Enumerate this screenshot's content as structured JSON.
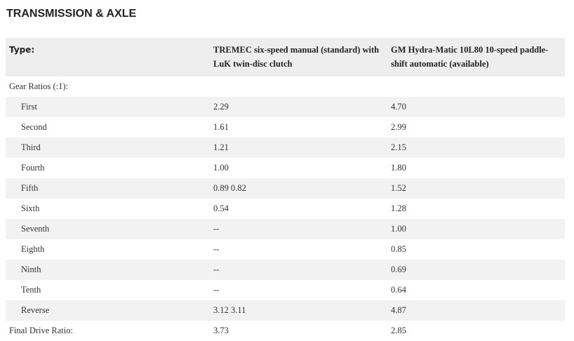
{
  "title": "TRANSMISSION & AXLE",
  "table": {
    "header": [
      "Type:",
      "TREMEC six-speed manual (standard) with LuK twin-disc clutch",
      "GM Hydra-Matic 10L80 10-speed paddle-shift automatic (available)"
    ],
    "section_label": "Gear Ratios (:1):",
    "rows": [
      [
        "First",
        "2.29",
        "4.70"
      ],
      [
        "Second",
        "1.61",
        "2.99"
      ],
      [
        "Third",
        "1.21",
        "2.15"
      ],
      [
        "Fourth",
        "1.00",
        "1.80"
      ],
      [
        "Fifth",
        "0.89 0.82",
        "1.52"
      ],
      [
        "Sixth",
        "0.54",
        "1.28"
      ],
      [
        "Seventh",
        "--",
        "1.00"
      ],
      [
        "Eighth",
        "--",
        "0.85"
      ],
      [
        "Ninth",
        "--",
        "0.69"
      ],
      [
        "Tenth",
        "--",
        "0.64"
      ],
      [
        "Reverse",
        "3.12 3.11",
        "4.87"
      ]
    ],
    "final_row": [
      "Final Drive Ratio:",
      "3.73",
      "2.85"
    ]
  }
}
